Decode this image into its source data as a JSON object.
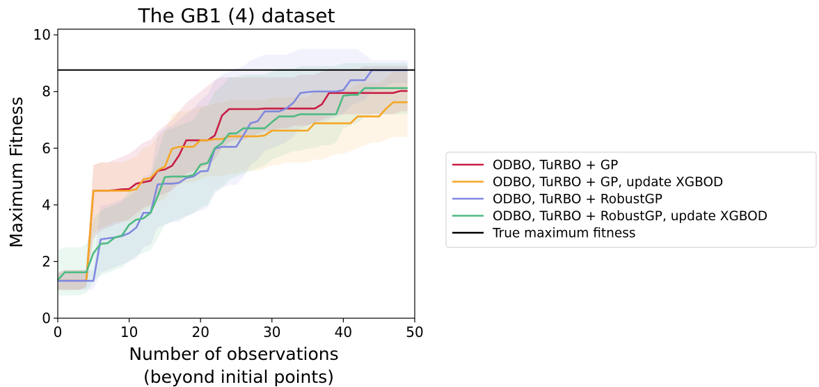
{
  "chart_data": {
    "type": "line",
    "title": "The GB1 (4) dataset",
    "xlabel_lines": [
      "Number of observations",
      "(beyond initial points)"
    ],
    "ylabel": "Maximum Fitness",
    "xlim": [
      0,
      50
    ],
    "ylim": [
      0,
      10.2
    ],
    "xticks": [
      0,
      10,
      20,
      30,
      40,
      50
    ],
    "yticks": [
      0,
      2,
      4,
      6,
      8,
      10
    ],
    "grid": false,
    "legend_position": "right, outside plot",
    "reference_line": {
      "name": "True maximum fitness",
      "y": 8.76,
      "color": "#000000"
    },
    "x": [
      0,
      1,
      2,
      3,
      4,
      5,
      6,
      7,
      8,
      9,
      10,
      11,
      12,
      13,
      14,
      15,
      16,
      17,
      18,
      19,
      20,
      21,
      22,
      23,
      24,
      25,
      26,
      27,
      28,
      29,
      30,
      31,
      32,
      33,
      34,
      35,
      36,
      37,
      38,
      39,
      40,
      41,
      42,
      43,
      44,
      45,
      46,
      47,
      48,
      49
    ],
    "series": [
      {
        "name": "ODBO, TuRBO + GP",
        "color": "#c81d45",
        "values": [
          1.32,
          1.32,
          1.32,
          1.32,
          1.32,
          4.5,
          4.5,
          4.5,
          4.52,
          4.55,
          4.56,
          4.75,
          4.8,
          4.85,
          5.2,
          5.25,
          5.38,
          5.75,
          6.28,
          6.28,
          6.28,
          6.28,
          6.45,
          7.15,
          7.38,
          7.38,
          7.38,
          7.38,
          7.38,
          7.4,
          7.4,
          7.4,
          7.4,
          7.4,
          7.4,
          7.4,
          7.4,
          7.55,
          7.95,
          7.95,
          7.95,
          7.95,
          7.95,
          7.95,
          7.95,
          7.95,
          7.95,
          7.95,
          8.02,
          8.02
        ],
        "band_lower": [
          1.0,
          1.0,
          1.0,
          1.0,
          1.1,
          2.8,
          3.1,
          3.2,
          3.3,
          3.4,
          3.5,
          3.7,
          3.9,
          4.0,
          4.3,
          4.4,
          4.5,
          4.8,
          5.1,
          5.2,
          5.3,
          5.4,
          5.6,
          6.0,
          6.2,
          6.3,
          6.3,
          6.4,
          6.5,
          6.6,
          6.6,
          6.7,
          6.7,
          6.8,
          6.8,
          6.8,
          6.9,
          7.0,
          7.1,
          7.2,
          7.2,
          7.2,
          7.2,
          7.2,
          7.2,
          7.2,
          7.2,
          7.2,
          7.3,
          7.3
        ],
        "band_upper": [
          1.6,
          1.7,
          1.7,
          1.7,
          1.7,
          5.4,
          5.5,
          5.5,
          5.6,
          5.7,
          5.8,
          6.0,
          6.2,
          6.3,
          6.6,
          6.8,
          7.0,
          7.3,
          7.6,
          7.8,
          8.0,
          8.2,
          8.4,
          8.5,
          8.5,
          8.5,
          8.5,
          8.5,
          8.5,
          8.5,
          8.5,
          8.5,
          8.5,
          8.5,
          8.6,
          8.6,
          8.6,
          8.7,
          8.8,
          8.8,
          8.8,
          8.8,
          8.8,
          8.9,
          8.9,
          8.9,
          8.9,
          8.9,
          8.9,
          8.9
        ]
      },
      {
        "name": "ODBO, TuRBO + GP, update XGBOD",
        "color": "#f5a623",
        "values": [
          1.32,
          1.32,
          1.32,
          1.32,
          1.32,
          4.5,
          4.5,
          4.5,
          4.5,
          4.5,
          4.5,
          4.55,
          4.9,
          4.95,
          5.22,
          5.35,
          5.98,
          6.05,
          6.05,
          6.05,
          6.28,
          6.28,
          6.32,
          6.32,
          6.42,
          6.42,
          6.42,
          6.42,
          6.42,
          6.45,
          6.62,
          6.62,
          6.62,
          6.62,
          6.62,
          6.62,
          6.88,
          6.88,
          6.88,
          6.88,
          6.88,
          6.88,
          7.12,
          7.12,
          7.12,
          7.12,
          7.4,
          7.62,
          7.62,
          7.62
        ],
        "band_lower": [
          1.0,
          1.0,
          1.0,
          1.0,
          1.1,
          3.0,
          3.2,
          3.3,
          3.4,
          3.4,
          3.4,
          3.5,
          3.8,
          3.9,
          4.1,
          4.2,
          4.6,
          4.7,
          4.8,
          4.8,
          4.9,
          5.0,
          5.0,
          5.0,
          5.1,
          5.1,
          5.2,
          5.2,
          5.2,
          5.3,
          5.4,
          5.4,
          5.5,
          5.5,
          5.5,
          5.5,
          5.6,
          5.6,
          5.7,
          5.8,
          5.8,
          5.9,
          6.0,
          6.1,
          6.2,
          6.2,
          6.3,
          6.4,
          6.4,
          6.4
        ],
        "band_upper": [
          1.6,
          1.7,
          1.7,
          1.7,
          1.7,
          5.4,
          5.5,
          5.5,
          5.5,
          5.5,
          5.6,
          5.7,
          6.0,
          6.1,
          6.4,
          6.6,
          7.2,
          7.3,
          7.3,
          7.4,
          7.5,
          7.5,
          7.6,
          7.6,
          7.7,
          7.7,
          7.7,
          7.7,
          7.7,
          7.7,
          7.8,
          7.8,
          7.8,
          7.8,
          7.8,
          7.8,
          8.0,
          8.0,
          8.0,
          8.0,
          8.1,
          8.1,
          8.3,
          8.3,
          8.3,
          8.3,
          8.5,
          8.7,
          8.7,
          8.7
        ]
      },
      {
        "name": "ODBO, TuRBO + RobustGP",
        "color": "#8088e0",
        "values": [
          1.32,
          1.32,
          1.32,
          1.32,
          1.32,
          1.32,
          2.78,
          2.82,
          2.85,
          2.9,
          3.0,
          3.2,
          3.72,
          3.72,
          4.72,
          4.75,
          4.75,
          4.78,
          4.95,
          5.0,
          5.18,
          5.2,
          5.98,
          6.05,
          6.05,
          6.05,
          6.45,
          6.88,
          6.95,
          7.3,
          7.3,
          7.3,
          7.4,
          7.6,
          7.95,
          7.98,
          8.0,
          8.0,
          8.0,
          8.0,
          8.05,
          8.4,
          8.4,
          8.4,
          8.75,
          8.75,
          8.75,
          8.75,
          8.75,
          8.75
        ],
        "band_lower": [
          1.0,
          1.0,
          1.0,
          1.0,
          1.0,
          1.0,
          1.6,
          1.7,
          1.8,
          1.9,
          2.0,
          2.1,
          2.5,
          2.6,
          3.2,
          3.3,
          3.4,
          3.4,
          3.6,
          3.7,
          3.8,
          3.9,
          4.4,
          4.6,
          4.7,
          4.7,
          5.0,
          5.4,
          5.6,
          5.9,
          6.0,
          6.1,
          6.2,
          6.4,
          6.7,
          6.8,
          6.9,
          6.9,
          7.0,
          7.1,
          7.2,
          7.5,
          7.6,
          7.7,
          8.0,
          8.1,
          8.2,
          8.3,
          8.3,
          8.3
        ],
        "band_upper": [
          1.6,
          1.7,
          1.7,
          1.7,
          1.7,
          1.7,
          4.0,
          4.0,
          4.1,
          4.2,
          4.3,
          4.5,
          5.0,
          5.1,
          6.5,
          6.7,
          6.8,
          7.0,
          7.2,
          7.4,
          7.7,
          7.9,
          8.4,
          8.6,
          8.7,
          8.8,
          8.9,
          9.1,
          9.2,
          9.3,
          9.3,
          9.3,
          9.3,
          9.4,
          9.5,
          9.5,
          9.5,
          9.5,
          9.5,
          9.5,
          9.5,
          9.5,
          9.5,
          9.3,
          9.1,
          9.1,
          9.1,
          9.1,
          9.1,
          9.1
        ]
      },
      {
        "name": "ODBO, TuRBO + RobustGP, update XGBOD",
        "color": "#4dba82",
        "values": [
          1.35,
          1.62,
          1.62,
          1.62,
          1.62,
          2.3,
          2.62,
          2.65,
          2.85,
          2.92,
          3.3,
          3.48,
          3.52,
          3.72,
          4.3,
          4.98,
          5.0,
          5.0,
          5.0,
          5.05,
          5.42,
          5.48,
          6.0,
          6.18,
          6.52,
          6.52,
          6.7,
          6.7,
          6.7,
          6.7,
          6.92,
          7.12,
          7.12,
          7.12,
          7.2,
          7.2,
          7.2,
          7.2,
          7.2,
          7.2,
          7.85,
          7.88,
          7.88,
          8.12,
          8.12,
          8.12,
          8.12,
          8.12,
          8.12,
          8.12
        ],
        "band_lower": [
          0.8,
          0.8,
          0.8,
          0.8,
          0.9,
          1.3,
          1.5,
          1.6,
          1.7,
          1.8,
          2.0,
          2.2,
          2.3,
          2.4,
          2.8,
          3.3,
          3.4,
          3.5,
          3.6,
          3.7,
          3.9,
          4.0,
          4.5,
          4.6,
          4.9,
          5.0,
          5.1,
          5.2,
          5.3,
          5.4,
          5.6,
          5.7,
          5.8,
          5.9,
          5.9,
          6.0,
          6.0,
          6.1,
          6.1,
          6.2,
          6.7,
          6.8,
          6.9,
          7.1,
          7.2,
          7.2,
          7.2,
          7.2,
          7.2,
          7.2
        ],
        "band_upper": [
          2.4,
          2.5,
          2.5,
          2.5,
          2.6,
          3.5,
          3.8,
          3.9,
          4.0,
          4.1,
          4.5,
          4.7,
          4.8,
          5.0,
          5.8,
          6.6,
          6.7,
          6.8,
          6.9,
          7.0,
          7.4,
          7.5,
          8.0,
          8.2,
          8.5,
          8.5,
          8.6,
          8.6,
          8.6,
          8.6,
          8.7,
          8.8,
          8.8,
          8.8,
          8.9,
          8.9,
          8.9,
          8.9,
          8.9,
          8.9,
          9.0,
          9.0,
          9.0,
          9.0,
          9.0,
          9.0,
          9.0,
          9.0,
          9.0,
          9.0
        ]
      }
    ]
  }
}
